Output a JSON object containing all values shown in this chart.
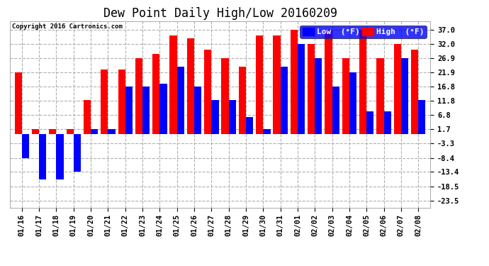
{
  "title": "Dew Point Daily High/Low 20160209",
  "copyright": "Copyright 2016 Cartronics.com",
  "dates": [
    "01/16",
    "01/17",
    "01/18",
    "01/19",
    "01/20",
    "01/21",
    "01/22",
    "01/23",
    "01/24",
    "01/25",
    "01/26",
    "01/27",
    "01/28",
    "01/29",
    "01/30",
    "01/31",
    "02/01",
    "02/02",
    "02/03",
    "02/04",
    "02/05",
    "02/06",
    "02/07",
    "02/08"
  ],
  "high_vals": [
    21.9,
    1.7,
    1.7,
    1.7,
    12.2,
    23.0,
    23.0,
    26.9,
    28.4,
    35.0,
    34.0,
    30.0,
    26.9,
    24.0,
    35.0,
    35.0,
    37.0,
    32.0,
    37.0,
    26.9,
    37.0,
    26.9,
    32.0,
    30.0
  ],
  "low_vals": [
    -8.4,
    -16.0,
    -16.0,
    -13.4,
    1.7,
    1.7,
    16.8,
    16.8,
    18.0,
    24.0,
    16.8,
    12.0,
    12.0,
    6.0,
    1.7,
    24.0,
    32.0,
    26.9,
    16.8,
    21.9,
    8.0,
    8.0,
    26.9,
    12.0
  ],
  "high_color": "#ff0000",
  "low_color": "#0000ff",
  "bg_color": "#ffffff",
  "grid_color": "#b0b0b0",
  "yticks": [
    -23.5,
    -18.5,
    -13.4,
    -8.4,
    -3.3,
    1.7,
    6.8,
    11.8,
    16.8,
    21.9,
    26.9,
    32.0,
    37.0
  ],
  "ylim": [
    -26.0,
    40.0
  ],
  "bar_width": 0.42,
  "title_fontsize": 12,
  "tick_fontsize": 7.5,
  "legend_fontsize": 8
}
